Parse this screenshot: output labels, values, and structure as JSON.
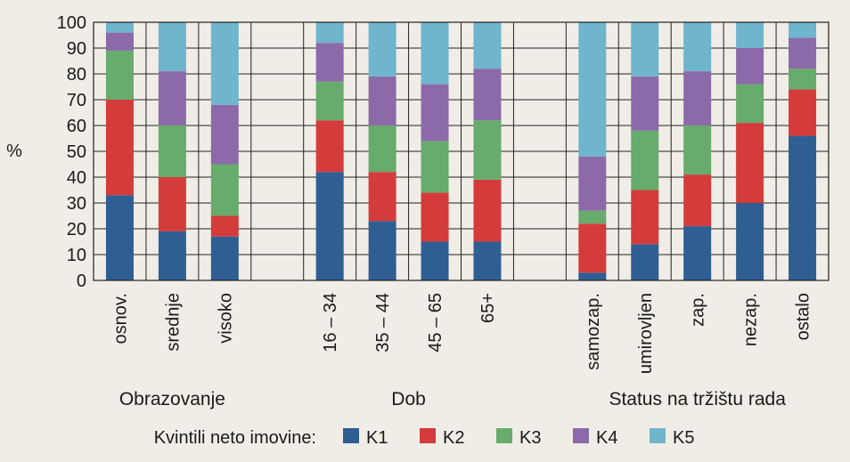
{
  "chart_data": {
    "type": "bar",
    "stacked": true,
    "ylabel": "%",
    "ylim": [
      0,
      100
    ],
    "yticks": [
      0,
      10,
      20,
      30,
      40,
      50,
      60,
      70,
      80,
      90,
      100
    ],
    "grid": true,
    "legend_title": "Kvintili neto imovine:",
    "legend_position": "bottom",
    "slots": [
      "osnov.",
      "srednje",
      "visoko",
      "",
      "16 – 34",
      "35 – 44",
      "45 – 65",
      "65+",
      "",
      "samozap.",
      "umirovljen",
      "zap.",
      "nezap.",
      "ostalo"
    ],
    "groups": [
      {
        "label": "Obrazovanje",
        "from": 0,
        "to": 2
      },
      {
        "label": "Dob",
        "from": 4,
        "to": 7
      },
      {
        "label": "Status na tržištu rada",
        "from": 9,
        "to": 13
      }
    ],
    "series": [
      {
        "name": "K1",
        "color": "#2f5e93",
        "values": [
          33,
          19,
          17,
          null,
          42,
          23,
          15,
          15,
          null,
          3,
          14,
          21,
          30,
          56
        ]
      },
      {
        "name": "K2",
        "color": "#d43c3c",
        "values": [
          37,
          21,
          8,
          null,
          20,
          19,
          19,
          24,
          null,
          19,
          21,
          20,
          31,
          18
        ]
      },
      {
        "name": "K3",
        "color": "#67ab6d",
        "values": [
          19,
          20,
          20,
          null,
          15,
          18,
          20,
          23,
          null,
          5,
          23,
          19,
          15,
          8
        ]
      },
      {
        "name": "K4",
        "color": "#8c6aa9",
        "values": [
          7,
          21,
          23,
          null,
          15,
          19,
          22,
          20,
          null,
          21,
          21,
          21,
          14,
          12
        ]
      },
      {
        "name": "K5",
        "color": "#6fb5cc",
        "values": [
          4,
          19,
          32,
          null,
          8,
          21,
          24,
          18,
          null,
          52,
          21,
          19,
          10,
          6
        ]
      }
    ]
  }
}
